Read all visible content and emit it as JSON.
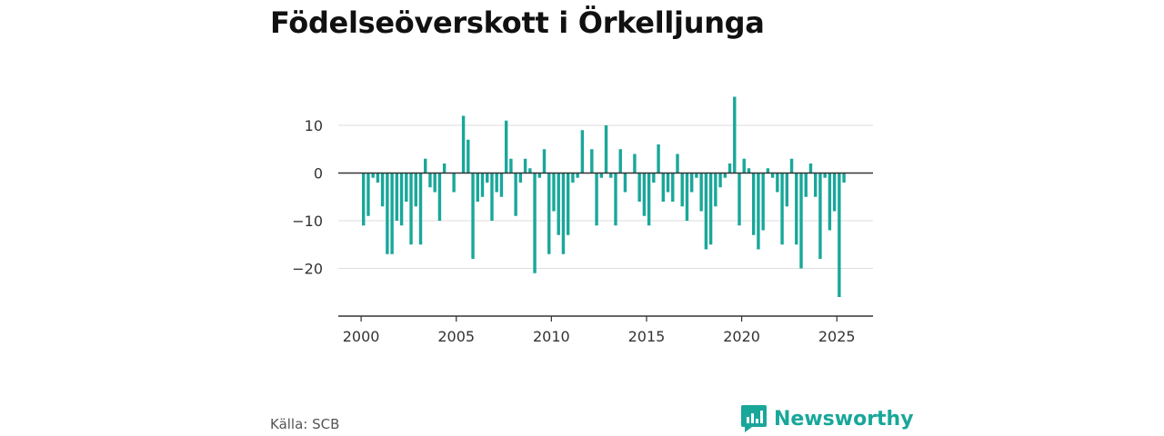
{
  "title": "Födelseöverskott i Örkelljunga",
  "source": "Källa: SCB",
  "brand": {
    "name": "Newsworthy",
    "icon": "bar-chart-bubble-icon",
    "color": "#19a79a"
  },
  "chart_data": {
    "type": "bar",
    "color": "#19a79a",
    "xlim": [
      1998.8,
      2026.9
    ],
    "ylim": [
      -30,
      18
    ],
    "x_ticks": [
      2000,
      2005,
      2010,
      2015,
      2020,
      2025
    ],
    "x_tick_labels": [
      "2000",
      "2005",
      "2010",
      "2015",
      "2020",
      "2025"
    ],
    "y_ticks": [
      10,
      0,
      -10,
      -20
    ],
    "y_tick_labels": [
      "10",
      "0",
      "−10",
      "−20"
    ],
    "grid": true,
    "x": [
      2000.125,
      2000.375,
      2000.625,
      2000.875,
      2001.125,
      2001.375,
      2001.625,
      2001.875,
      2002.125,
      2002.375,
      2002.625,
      2002.875,
      2003.125,
      2003.375,
      2003.625,
      2003.875,
      2004.125,
      2004.375,
      2004.625,
      2004.875,
      2005.125,
      2005.375,
      2005.625,
      2005.875,
      2006.125,
      2006.375,
      2006.625,
      2006.875,
      2007.125,
      2007.375,
      2007.625,
      2007.875,
      2008.125,
      2008.375,
      2008.625,
      2008.875,
      2009.125,
      2009.375,
      2009.625,
      2009.875,
      2010.125,
      2010.375,
      2010.625,
      2010.875,
      2011.125,
      2011.375,
      2011.625,
      2011.875,
      2012.125,
      2012.375,
      2012.625,
      2012.875,
      2013.125,
      2013.375,
      2013.625,
      2013.875,
      2014.125,
      2014.375,
      2014.625,
      2014.875,
      2015.125,
      2015.375,
      2015.625,
      2015.875,
      2016.125,
      2016.375,
      2016.625,
      2016.875,
      2017.125,
      2017.375,
      2017.625,
      2017.875,
      2018.125,
      2018.375,
      2018.625,
      2018.875,
      2019.125,
      2019.375,
      2019.625,
      2019.875,
      2020.125,
      2020.375,
      2020.625,
      2020.875,
      2021.125,
      2021.375,
      2021.625,
      2021.875,
      2022.125,
      2022.375,
      2022.625,
      2022.875,
      2023.125,
      2023.375,
      2023.625,
      2023.875,
      2024.125,
      2024.375,
      2024.625,
      2024.875,
      2025.125,
      2025.375
    ],
    "values": [
      -11,
      -9,
      -1,
      -2,
      -7,
      -17,
      -17,
      -10,
      -11,
      -6,
      -15,
      -7,
      -15,
      3,
      -3,
      -4,
      -10,
      2,
      0,
      -4,
      0,
      12,
      7,
      -18,
      -6,
      -5,
      -2,
      -10,
      -4,
      -5,
      11,
      3,
      -9,
      -2,
      3,
      1,
      -21,
      -1,
      5,
      -17,
      -8,
      -13,
      -17,
      -13,
      -2,
      -1,
      9,
      0,
      5,
      -11,
      -1,
      10,
      -1,
      -11,
      5,
      -4,
      0,
      4,
      -6,
      -9,
      -11,
      -2,
      6,
      -6,
      -4,
      -6,
      4,
      -7,
      -10,
      -4,
      -1,
      -8,
      -16,
      -15,
      -7,
      -3,
      -1,
      2,
      16,
      -11,
      3,
      1,
      -13,
      -16,
      -12,
      1,
      -1,
      -4,
      -15,
      -7,
      3,
      -15,
      -20,
      -5,
      2,
      -5,
      -18,
      -1,
      -12,
      -8,
      -26,
      -2
    ]
  }
}
